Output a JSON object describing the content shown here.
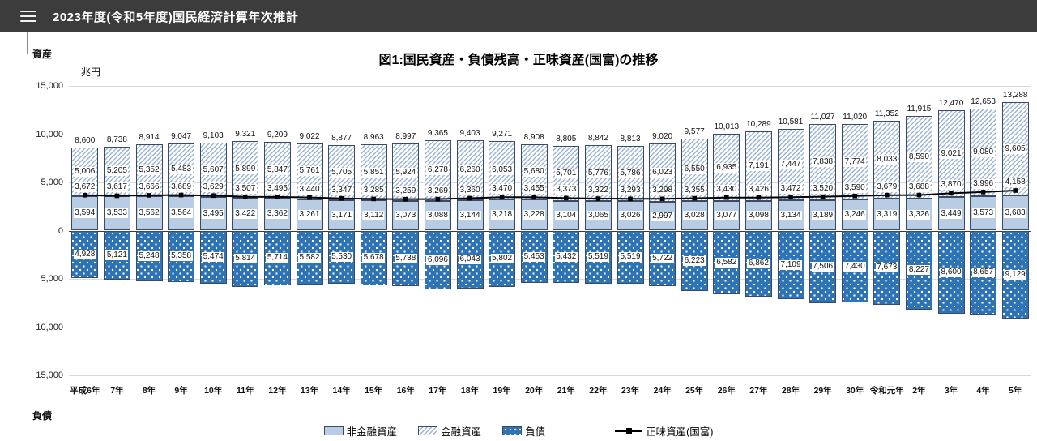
{
  "header": {
    "title": "2023年度(令和5年度)国民経済計算年次推計",
    "menu_icon": "hamburger"
  },
  "chart": {
    "title": "図1:国民資産・負債残高・正味資産(国富)の推移",
    "unit_label": "兆円",
    "top_axis_label": "資産",
    "bottom_axis_label": "負債",
    "y_ticks": [
      "15,000",
      "10,000",
      "5,000",
      "0",
      "5,000",
      "10,000",
      "15,000"
    ]
  },
  "legend": {
    "items": [
      {
        "label": "非金融資産",
        "swatch": "solid"
      },
      {
        "label": "金融資産",
        "swatch": "hatch"
      },
      {
        "label": "負債",
        "swatch": "dots"
      },
      {
        "label": "正味資産(国富)",
        "swatch": "line"
      }
    ]
  },
  "colors": {
    "header_bg": "#3c3c3c",
    "nonfinancial_fill": "#b8cce4",
    "financial_hatch_stripe": "#9db4d8",
    "liabilities_fill": "#2e74b5",
    "bar_border": "#3b4a66",
    "net_line": "#000000",
    "gridline": "#d9d9d9"
  },
  "chart_data": {
    "type": "bar",
    "subtype": "stacked-bars-with-line",
    "title": "図1:国民資産・負債残高・正味資産(国富)の推移",
    "unit": "兆円",
    "ylim": [
      -15000,
      15000
    ],
    "grid": true,
    "legend_position": "bottom",
    "axis_side_labels": {
      "top": "資産",
      "bottom": "負債"
    },
    "categories": [
      "平成6年",
      "7年",
      "8年",
      "9年",
      "10年",
      "11年",
      "12年",
      "13年",
      "14年",
      "15年",
      "16年",
      "17年",
      "18年",
      "19年",
      "20年",
      "21年",
      "22年",
      "23年",
      "24年",
      "25年",
      "26年",
      "27年",
      "28年",
      "29年",
      "30年",
      "令和元年",
      "2年",
      "3年",
      "4年",
      "5年"
    ],
    "series": [
      {
        "name": "非金融資産",
        "type": "bar",
        "stack": "assets",
        "direction": "up",
        "values": [
          3594,
          3533,
          3562,
          3564,
          3495,
          3422,
          3362,
          3261,
          3171,
          3112,
          3073,
          3088,
          3144,
          3218,
          3228,
          3104,
          3065,
          3026,
          2997,
          3028,
          3077,
          3098,
          3134,
          3189,
          3246,
          3319,
          3326,
          3449,
          3573,
          3683
        ]
      },
      {
        "name": "金融資産",
        "type": "bar",
        "stack": "assets",
        "direction": "up",
        "values": [
          5006,
          5205,
          5352,
          5483,
          5607,
          5899,
          5847,
          5761,
          5705,
          5851,
          5924,
          6278,
          6260,
          6053,
          5680,
          5701,
          5776,
          5786,
          6023,
          6550,
          6935,
          7191,
          7447,
          7838,
          7774,
          8033,
          8590,
          9021,
          9080,
          9605
        ]
      },
      {
        "name": "負債",
        "type": "bar",
        "stack": "liabilities",
        "direction": "down",
        "values": [
          4928,
          5121,
          5248,
          5358,
          5474,
          5814,
          5714,
          5582,
          5530,
          5678,
          5738,
          6096,
          6043,
          5802,
          5453,
          5432,
          5519,
          5519,
          5722,
          6223,
          6582,
          6862,
          7109,
          7506,
          7430,
          7673,
          8227,
          8600,
          8657,
          9129
        ]
      },
      {
        "name": "正味資産(国富)",
        "type": "line",
        "marker": "square",
        "values": [
          3672,
          3617,
          3666,
          3689,
          3629,
          3507,
          3495,
          3440,
          3347,
          3285,
          3259,
          3269,
          3360,
          3470,
          3455,
          3373,
          3322,
          3293,
          3298,
          3355,
          3430,
          3426,
          3472,
          3520,
          3590,
          3679,
          3688,
          3870,
          3996,
          4158
        ]
      }
    ],
    "asset_totals": [
      8600,
      8738,
      8914,
      9047,
      9103,
      9321,
      9209,
      9022,
      8877,
      8963,
      8997,
      9365,
      9403,
      9271,
      8908,
      8805,
      8842,
      8813,
      9020,
      9577,
      10013,
      10289,
      10581,
      11027,
      11020,
      11352,
      11915,
      12470,
      12653,
      13288
    ]
  }
}
